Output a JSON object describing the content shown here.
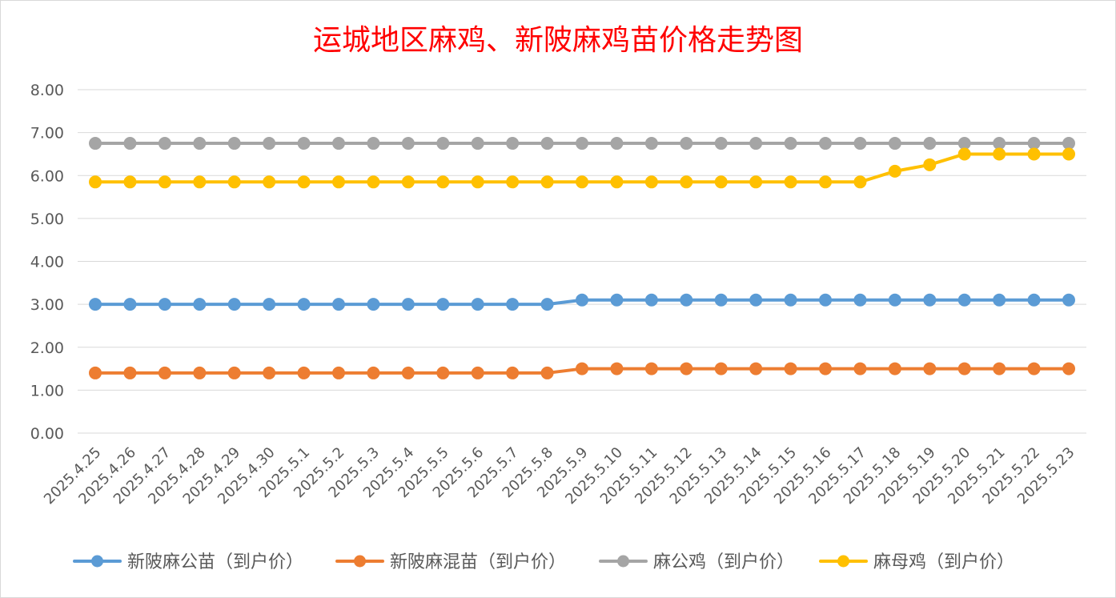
{
  "chart_data": {
    "type": "line",
    "title": "运城地区麻鸡、新陂麻鸡苗价格走势图",
    "xlabel": "",
    "ylabel": "",
    "ylim": [
      0,
      8
    ],
    "yticks": [
      "0.00",
      "1.00",
      "2.00",
      "3.00",
      "4.00",
      "5.00",
      "6.00",
      "7.00",
      "8.00"
    ],
    "grid": true,
    "legend_position": "bottom",
    "categories": [
      "2025.4.25",
      "2025.4.26",
      "2025.4.27",
      "2025.4.28",
      "2025.4.29",
      "2025.4.30",
      "2025.5.1",
      "2025.5.2",
      "2025.5.3",
      "2025.5.4",
      "2025.5.5",
      "2025.5.6",
      "2025.5.7",
      "2025.5.8",
      "2025.5.9",
      "2025.5.10",
      "2025.5.11",
      "2025.5.12",
      "2025.5.13",
      "2025.5.14",
      "2025.5.15",
      "2025.5.16",
      "2025.5.17",
      "2025.5.18",
      "2025.5.19",
      "2025.5.20",
      "2025.5.21",
      "2025.5.22",
      "2025.5.23"
    ],
    "series": [
      {
        "name": "新陂麻公苗（到户价）",
        "color": "#5b9bd5",
        "values": [
          3.0,
          3.0,
          3.0,
          3.0,
          3.0,
          3.0,
          3.0,
          3.0,
          3.0,
          3.0,
          3.0,
          3.0,
          3.0,
          3.0,
          3.1,
          3.1,
          3.1,
          3.1,
          3.1,
          3.1,
          3.1,
          3.1,
          3.1,
          3.1,
          3.1,
          3.1,
          3.1,
          3.1,
          3.1
        ]
      },
      {
        "name": "新陂麻混苗（到户价）",
        "color": "#ed7d31",
        "values": [
          1.4,
          1.4,
          1.4,
          1.4,
          1.4,
          1.4,
          1.4,
          1.4,
          1.4,
          1.4,
          1.4,
          1.4,
          1.4,
          1.4,
          1.5,
          1.5,
          1.5,
          1.5,
          1.5,
          1.5,
          1.5,
          1.5,
          1.5,
          1.5,
          1.5,
          1.5,
          1.5,
          1.5,
          1.5
        ]
      },
      {
        "name": "麻公鸡（到户价）",
        "color": "#a5a5a5",
        "values": [
          6.75,
          6.75,
          6.75,
          6.75,
          6.75,
          6.75,
          6.75,
          6.75,
          6.75,
          6.75,
          6.75,
          6.75,
          6.75,
          6.75,
          6.75,
          6.75,
          6.75,
          6.75,
          6.75,
          6.75,
          6.75,
          6.75,
          6.75,
          6.75,
          6.75,
          6.75,
          6.75,
          6.75,
          6.75
        ]
      },
      {
        "name": "麻母鸡（到户价）",
        "color": "#ffc000",
        "values": [
          5.85,
          5.85,
          5.85,
          5.85,
          5.85,
          5.85,
          5.85,
          5.85,
          5.85,
          5.85,
          5.85,
          5.85,
          5.85,
          5.85,
          5.85,
          5.85,
          5.85,
          5.85,
          5.85,
          5.85,
          5.85,
          5.85,
          5.85,
          6.1,
          6.25,
          6.5,
          6.5,
          6.5,
          6.5
        ]
      }
    ]
  },
  "colors": {
    "title": "#ff0000",
    "gridline": "#d9d9d9",
    "tick_text": "#595959",
    "frame_border": "#d9d9d9"
  }
}
